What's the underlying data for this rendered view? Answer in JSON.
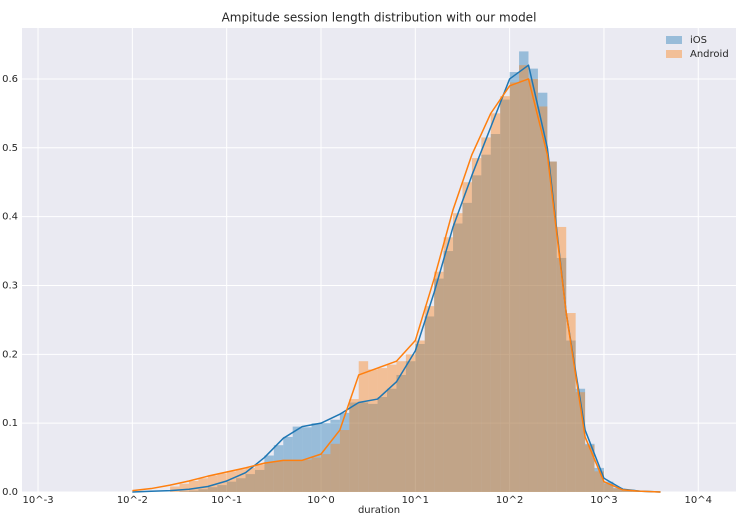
{
  "chart_data": {
    "type": "histogram",
    "title": "Ampitude session length distribution with our model",
    "x_label": "duration",
    "bins": [
      -1.6,
      -1.5,
      -1.4,
      -1.3,
      -1.2,
      -1.1,
      -1.0,
      -0.9,
      -0.8,
      -0.7,
      -0.6,
      -0.5,
      -0.4,
      -0.3,
      -0.2,
      -0.1,
      0.0,
      0.1,
      0.2,
      0.3,
      0.4,
      0.5,
      0.6,
      0.7,
      0.8,
      0.9,
      1.0,
      1.1,
      1.2,
      1.3,
      1.4,
      1.5,
      1.6,
      1.7,
      1.8,
      1.9,
      2.0,
      2.1,
      2.2,
      2.3,
      2.4,
      2.5,
      2.6,
      2.7,
      2.8,
      2.9,
      3.0,
      3.1,
      3.2,
      3.3,
      3.4
    ],
    "kde_x": [
      -2.0,
      -1.8,
      -1.6,
      -1.4,
      -1.2,
      -1.0,
      -0.8,
      -0.6,
      -0.4,
      -0.2,
      0.0,
      0.2,
      0.4,
      0.6,
      0.8,
      1.0,
      1.2,
      1.4,
      1.6,
      1.8,
      2.0,
      2.2,
      2.4,
      2.6,
      2.8,
      3.0,
      3.2,
      3.4,
      3.6
    ],
    "series": [
      {
        "name": "iOS",
        "color": "#1f77b4",
        "values": [
          0.0,
          0.001,
          0.002,
          0.004,
          0.007,
          0.01,
          0.015,
          0.02,
          0.026,
          0.032,
          0.053,
          0.068,
          0.08,
          0.095,
          0.094,
          0.1,
          0.1,
          0.105,
          0.115,
          0.13,
          0.13,
          0.128,
          0.138,
          0.15,
          0.17,
          0.19,
          0.215,
          0.255,
          0.31,
          0.35,
          0.39,
          0.42,
          0.46,
          0.49,
          0.52,
          0.57,
          0.61,
          0.64,
          0.615,
          0.58,
          0.48,
          0.34,
          0.22,
          0.15,
          0.07,
          0.035,
          0.015,
          0.006,
          0.002,
          0.001
        ],
        "kde_values": [
          0,
          0.001,
          0.002,
          0.004,
          0.008,
          0.016,
          0.028,
          0.05,
          0.078,
          0.095,
          0.1,
          0.113,
          0.13,
          0.135,
          0.16,
          0.205,
          0.29,
          0.385,
          0.46,
          0.53,
          0.6,
          0.62,
          0.5,
          0.26,
          0.09,
          0.02,
          0.004,
          0.001,
          0
        ]
      },
      {
        "name": "Android",
        "color": "#ff7f0e",
        "values": [
          0.008,
          0.012,
          0.016,
          0.02,
          0.024,
          0.027,
          0.03,
          0.033,
          0.035,
          0.04,
          0.043,
          0.045,
          0.046,
          0.046,
          0.047,
          0.05,
          0.055,
          0.07,
          0.09,
          0.135,
          0.19,
          0.178,
          0.18,
          0.185,
          0.19,
          0.2,
          0.22,
          0.27,
          0.32,
          0.37,
          0.405,
          0.45,
          0.485,
          0.515,
          0.55,
          0.575,
          0.595,
          0.62,
          0.6,
          0.56,
          0.48,
          0.385,
          0.26,
          0.145,
          0.068,
          0.03,
          0.012,
          0.005,
          0.002,
          0.001
        ],
        "kde_values": [
          0.002,
          0.005,
          0.01,
          0.016,
          0.023,
          0.029,
          0.035,
          0.042,
          0.046,
          0.046,
          0.055,
          0.09,
          0.17,
          0.18,
          0.19,
          0.22,
          0.31,
          0.41,
          0.49,
          0.55,
          0.59,
          0.6,
          0.49,
          0.26,
          0.08,
          0.015,
          0.003,
          0.001,
          0
        ]
      }
    ],
    "xlim": [
      -3.17,
      4.4
    ],
    "ylim": [
      0,
      0.674
    ],
    "xticks": [
      {
        "value": -3,
        "label": "10^-3"
      },
      {
        "value": -2,
        "label": "10^-2"
      },
      {
        "value": -1,
        "label": "10^-1"
      },
      {
        "value": 0,
        "label": "10^0"
      },
      {
        "value": 1,
        "label": "10^1"
      },
      {
        "value": 2,
        "label": "10^2"
      },
      {
        "value": 3,
        "label": "10^3"
      },
      {
        "value": 4,
        "label": "10^4"
      }
    ],
    "yticks": [
      {
        "value": 0,
        "label": "0.0"
      },
      0.1,
      0.2,
      0.3,
      0.4,
      0.5,
      0.6
    ],
    "grid": true,
    "legend": "upper right"
  }
}
